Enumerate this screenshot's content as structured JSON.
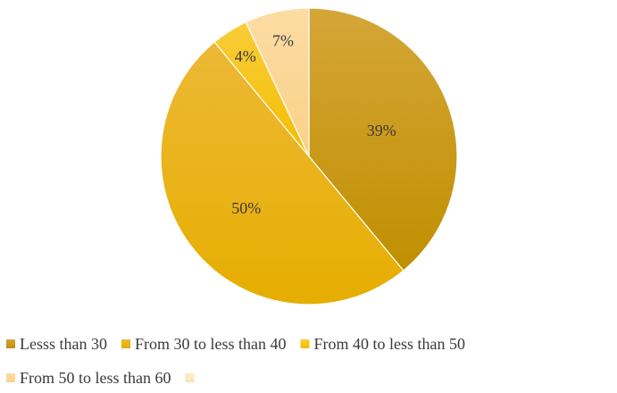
{
  "chart_data": {
    "type": "pie",
    "categories": [
      "Lesss than 30",
      "From 30 to less than 40",
      "From 40 to less than 50",
      "From 50 to less than 60",
      ""
    ],
    "values": [
      39,
      50,
      4,
      7,
      0
    ],
    "data_labels": [
      "39%",
      "50%",
      "4%",
      "7%",
      ""
    ],
    "colors": [
      "#C99A1C",
      "#E9B21A",
      "#F6C416",
      "#FBD692",
      "#FCE7C0"
    ],
    "title": "",
    "legend_position": "bottom",
    "start_angle_deg": 0,
    "direction": "clockwise"
  }
}
